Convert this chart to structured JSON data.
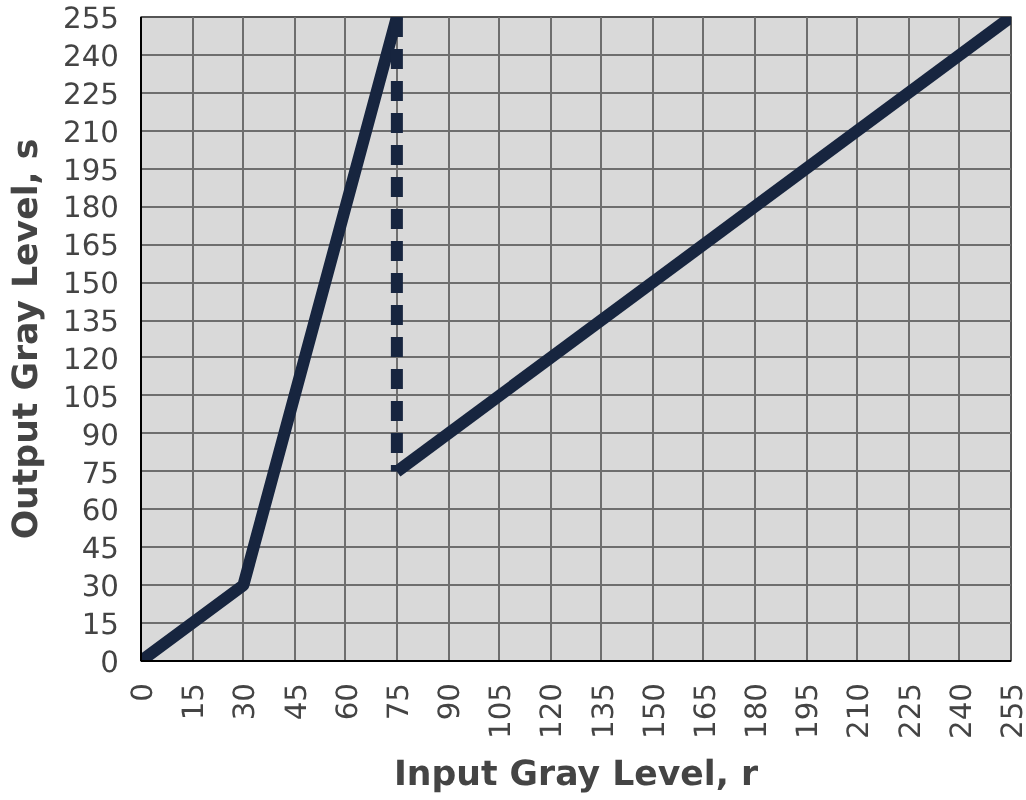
{
  "chart_data": {
    "type": "line",
    "xlabel": "Input Gray Level, r",
    "ylabel": "Output Gray Level, s",
    "series": [
      {
        "color": "#17253f",
        "x": [
          0,
          30,
          75
        ],
        "values": [
          0,
          30,
          255
        ],
        "line_style": "solid"
      },
      {
        "color": "#17253f",
        "x": [
          75,
          75
        ],
        "values": [
          255,
          75
        ],
        "line_style": "dashed"
      },
      {
        "color": "#17253f",
        "x": [
          75,
          255
        ],
        "values": [
          75,
          255
        ],
        "line_style": "solid"
      }
    ],
    "xlim": [
      0,
      255
    ],
    "ylim": [
      0,
      255
    ],
    "xticks": [
      0,
      15,
      30,
      45,
      60,
      75,
      90,
      105,
      120,
      135,
      150,
      165,
      180,
      195,
      210,
      225,
      240,
      255
    ],
    "yticks": [
      0,
      15,
      30,
      45,
      60,
      75,
      90,
      105,
      120,
      135,
      150,
      165,
      180,
      195,
      210,
      225,
      240,
      255
    ],
    "grid": true
  }
}
